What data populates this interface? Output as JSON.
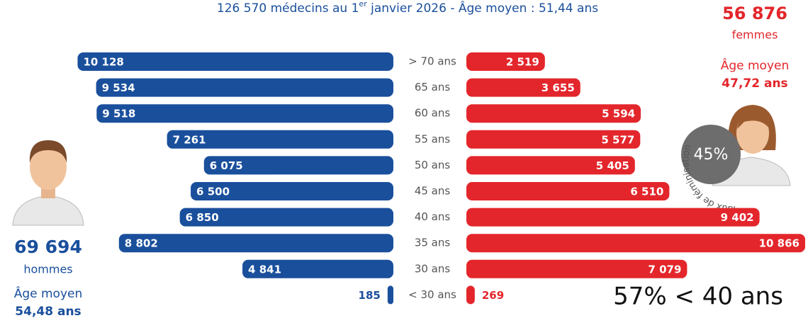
{
  "chart_data": {
    "type": "pyramid",
    "title": [
      "126 570 médecins au 1",
      "er",
      " janvier 2026 - Âge moyen :  51,44 ans"
    ],
    "categories": [
      "> 70 ans",
      "65 ans",
      "60 ans",
      "55 ans",
      "50 ans",
      "45 ans",
      "40 ans",
      "35 ans",
      "30 ans",
      "< 30 ans"
    ],
    "series": [
      {
        "name": "hommes",
        "color": "#1a4f9c",
        "side": "left",
        "values": [
          10128,
          9534,
          9518,
          7261,
          6075,
          6500,
          6850,
          8802,
          4841,
          185
        ],
        "value_labels": [
          "10 128",
          "9 534",
          "9 518",
          "7 261",
          "6 075",
          "6 500",
          "6 850",
          "8 802",
          "4 841",
          "185"
        ]
      },
      {
        "name": "femmes",
        "color": "#e3262b",
        "side": "right",
        "values": [
          2519,
          3655,
          5594,
          5577,
          5405,
          6510,
          9402,
          10866,
          7079,
          269
        ],
        "value_labels": [
          "2 519",
          "3 655",
          "5 594",
          "5 577",
          "5 405",
          "6 510",
          "9 402",
          "10 866",
          "7 079",
          "269"
        ]
      }
    ],
    "annotations": {
      "women_total": "56 876",
      "women_age_label": "Âge moyen",
      "women_age": "47,72 ans",
      "men_total": "69 694",
      "men_age_label": "Âge moyen",
      "men_age": "54,48 ans",
      "feminisation_rate": "45%",
      "feminisation_label": "Taux de féminisation",
      "under_40": "57% < 40 ans"
    }
  }
}
